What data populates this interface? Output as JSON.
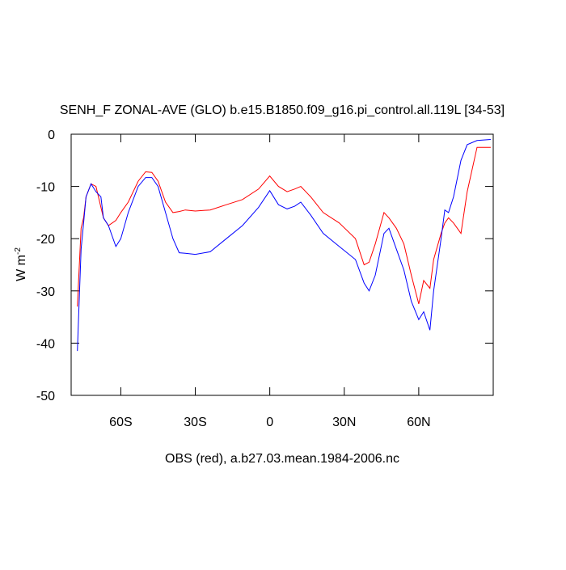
{
  "chart_data": {
    "type": "line",
    "title": "SENH_F ZONAL-AVE (GLO) b.e15.B1850.f09_g16.pi_control.all.119L [34-53]",
    "xlabel": "OBS (red), a.b27.03.mean.1984-2006.nc",
    "ylabel": "W m",
    "ylabel_exponent": "-2",
    "x": [
      -77.5,
      -77,
      -76,
      -75,
      -74,
      -72,
      -70,
      -68,
      -67,
      -65,
      -62,
      -60,
      -57,
      -53,
      -50,
      -47.5,
      -45,
      -42,
      -39,
      -36.5,
      -34,
      -30,
      -24,
      -17.5,
      -11,
      -4.5,
      0,
      3.5,
      7,
      10,
      12.5,
      16.5,
      21.5,
      28,
      34.5,
      38,
      40,
      42.5,
      46,
      48,
      51,
      54,
      57,
      60,
      62,
      64.5,
      66,
      69,
      70.5,
      72,
      74,
      77,
      79.5,
      83.5,
      89
    ],
    "series": [
      {
        "color": "#ff0000",
        "values": [
          -33,
          -28,
          -18,
          -16,
          -12,
          -9.5,
          -10,
          -14,
          -16,
          -17.5,
          -16.5,
          -15,
          -13,
          -9,
          -7.2,
          -7.3,
          -9,
          -13,
          -15,
          -14.8,
          -14.5,
          -14.7,
          -14.5,
          -13.5,
          -12.5,
          -10.5,
          -8,
          -10,
          -11,
          -10.5,
          -10,
          -12,
          -15,
          -17,
          -20,
          -25,
          -24.5,
          -21,
          -15,
          -16,
          -18,
          -21,
          -27,
          -32.5,
          -28,
          -29.5,
          -24,
          -19,
          -17,
          -16,
          -17,
          -19,
          -11,
          -2.5,
          -2.5
        ]
      },
      {
        "color": "#0000ff",
        "values": [
          -41.5,
          -35,
          -22,
          -17,
          -12,
          -9.5,
          -11,
          -12,
          -16,
          -17.5,
          -21.5,
          -20,
          -15,
          -10,
          -8.3,
          -8.3,
          -10,
          -15,
          -20,
          -22.7,
          -22.8,
          -23,
          -22.5,
          -20,
          -17.5,
          -14,
          -10.8,
          -13.5,
          -14.3,
          -13.8,
          -13,
          -15.5,
          -19,
          -21.5,
          -24,
          -28.5,
          -30,
          -27,
          -19,
          -18,
          -22,
          -26,
          -32,
          -35.5,
          -34,
          -37.5,
          -30,
          -20,
          -14.5,
          -15,
          -12,
          -5,
          -2,
          -1.2,
          -1.0
        ]
      }
    ],
    "xlim": [
      -80,
      90
    ],
    "xticks": [
      {
        "value": -60,
        "label": "60S"
      },
      {
        "value": -30,
        "label": "30S"
      },
      0,
      {
        "value": 30,
        "label": "30N"
      },
      {
        "value": 60,
        "label": "60N"
      }
    ],
    "ylim": [
      -50,
      0
    ],
    "yticks": [
      -50,
      -40,
      -30,
      -20,
      -10,
      0
    ]
  }
}
